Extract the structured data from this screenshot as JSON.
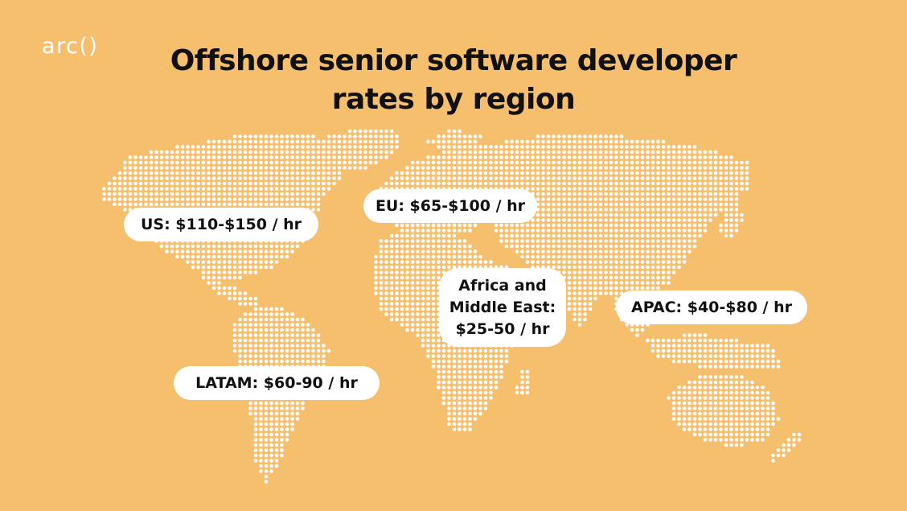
{
  "brand": {
    "logo_text": "arc()"
  },
  "title": {
    "line1": "Offshore senior software developer",
    "line2": "rates by region"
  },
  "colors": {
    "background": "#F5BF6E",
    "dots": "#FFFFFF",
    "label_background": "#FFFFFF",
    "text": "#111111"
  },
  "regions": {
    "us": "US: $110-$150 / hr",
    "eu": "EU: $65-$100 / hr",
    "africa": [
      "Africa and",
      "Middle East:",
      "$25-50 / hr"
    ],
    "apac": "APAC: $40-$80 / hr",
    "latam": "LATAM: $60-90 / hr"
  }
}
